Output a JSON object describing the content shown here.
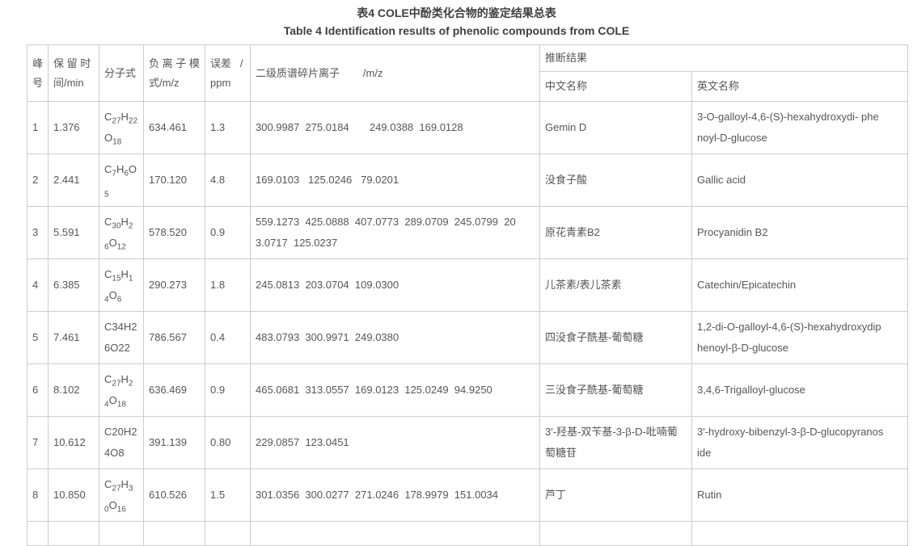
{
  "page": {
    "title_zh": "表4 COLE中酚类化合物的鉴定结果总表",
    "title_en": "Table 4 Identification results of phenolic compounds from COLE"
  },
  "colors": {
    "border": "#cccccc",
    "body_text": "#565656",
    "title_text": "#3f3f3f",
    "background": "#ffffff"
  },
  "table": {
    "headers": {
      "peak": "峰\n号",
      "retention": "保 留 时\n间/min",
      "formula": "分子式",
      "neg_ion_mode": "负 离 子 模\n式/m/z",
      "error": "误差   /\nppm",
      "fragments": "二级质谱碎片离子        /m/z",
      "inference": "推断结果",
      "name_zh": "中文名称",
      "name_en": "英文名称"
    },
    "rows": [
      {
        "peak": "1",
        "rt": "1.376",
        "formula": "C{27}H{22}\nO{18}",
        "mz": "634.461",
        "err": "1.3",
        "fragments": "300.9987  275.0184       249.0388  169.0128",
        "zh": "Gemin D",
        "en": "3-O-galloyl-4,6-(S)-hexahydroxydi- phe\nnoyl-D-glucose"
      },
      {
        "peak": "2",
        "rt": "2.441",
        "formula": "C{7}H{6}O\n{5}",
        "mz": "170.120",
        "err": "4.8",
        "fragments": "169.0103   125.0246   79.0201",
        "zh": "没食子酸",
        "en": "Gallic acid"
      },
      {
        "peak": "3",
        "rt": "5.591",
        "formula": "C{30}H{2}\n{6}O{12}",
        "mz": "578.520",
        "err": "0.9",
        "fragments": "559.1273  425.0888  407.0773  289.0709  245.0799  20\n3.0717  125.0237",
        "zh": "原花青素B2",
        "en": "Procyanidin B2"
      },
      {
        "peak": "4",
        "rt": "6.385",
        "formula": "C{15}H{1}\n{4}O{6}",
        "mz": "290.273",
        "err": "1.8",
        "fragments": "245.0813  203.0704  109.0300",
        "zh": "儿茶素/表儿茶素",
        "en": "Catechin/Epicatechin"
      },
      {
        "peak": "5",
        "rt": "7.461",
        "formula": "C34H2\n6O22",
        "mz": "786.567",
        "err": "0.4",
        "fragments": "483.0793  300.9971  249.0380",
        "zh": "四没食子酰基-葡萄糖",
        "en": "1,2-di-O-galloyl-4,6-(S)-hexahydroxydip\nhenoyl-β-D-glucose"
      },
      {
        "peak": "6",
        "rt": "8.102",
        "formula": "C{27}H{2}\n{4}O{18}",
        "mz": "636.469",
        "err": "0.9",
        "fragments": "465.0681  313.0557  169.0123  125.0249  94.9250",
        "zh": "三没食子酰基-葡萄糖",
        "en": "3,4,6-Trigalloyl-glucose"
      },
      {
        "peak": "7",
        "rt": "10.612",
        "formula": "C20H2\n4O8",
        "mz": "391.139",
        "err": "0.80",
        "fragments": "229.0857  123.0451",
        "zh": "3'-羟基-双苄基-3-β-D-吡喃葡\n萄糖苷",
        "en": "3'-hydroxy-bibenzyl-3-β-D-glucopyranos\nide"
      },
      {
        "peak": "8",
        "rt": "10.850",
        "formula": "C{27}H{3}\n{0}O{16}",
        "mz": "610.526",
        "err": "1.5",
        "fragments": "301.0356  300.0277  271.0246  178.9979  151.0034",
        "zh": "芦丁",
        "en": "Rutin"
      }
    ]
  }
}
